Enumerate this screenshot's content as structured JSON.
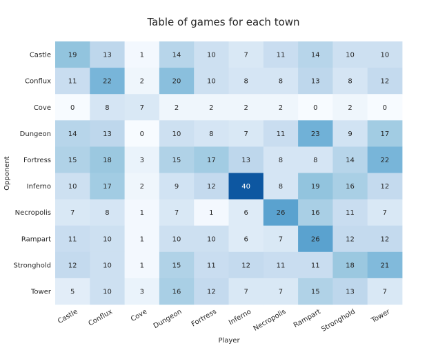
{
  "chart_data": {
    "type": "heatmap",
    "title": "Table of games for each town",
    "xlabel": "Player",
    "ylabel": "Opponent",
    "x_categories": [
      "Castle",
      "Conflux",
      "Cove",
      "Dungeon",
      "Fortress",
      "Inferno",
      "Necropolis",
      "Rampart",
      "Stronghold",
      "Tower"
    ],
    "y_categories": [
      "Castle",
      "Conflux",
      "Cove",
      "Dungeon",
      "Fortress",
      "Inferno",
      "Necropolis",
      "Rampart",
      "Stronghold",
      "Tower"
    ],
    "values": [
      [
        19,
        13,
        1,
        14,
        10,
        7,
        11,
        14,
        10,
        10
      ],
      [
        11,
        22,
        2,
        20,
        10,
        8,
        8,
        13,
        8,
        12
      ],
      [
        0,
        8,
        7,
        2,
        2,
        2,
        2,
        0,
        2,
        0
      ],
      [
        14,
        13,
        0,
        10,
        8,
        7,
        11,
        23,
        9,
        17
      ],
      [
        15,
        18,
        3,
        15,
        17,
        13,
        8,
        8,
        14,
        22
      ],
      [
        10,
        17,
        2,
        9,
        12,
        40,
        8,
        19,
        16,
        12
      ],
      [
        7,
        8,
        1,
        7,
        1,
        6,
        26,
        16,
        11,
        7
      ],
      [
        11,
        10,
        1,
        10,
        10,
        6,
        7,
        26,
        12,
        12
      ],
      [
        12,
        10,
        1,
        15,
        11,
        12,
        11,
        11,
        18,
        21
      ],
      [
        5,
        10,
        3,
        16,
        12,
        7,
        7,
        15,
        13,
        7
      ]
    ],
    "value_range": [
      0,
      40
    ],
    "colormap": "Blues",
    "colors": {
      "low": "#f7fbff",
      "high": "#08519c"
    },
    "annotate": true,
    "grid": false
  }
}
